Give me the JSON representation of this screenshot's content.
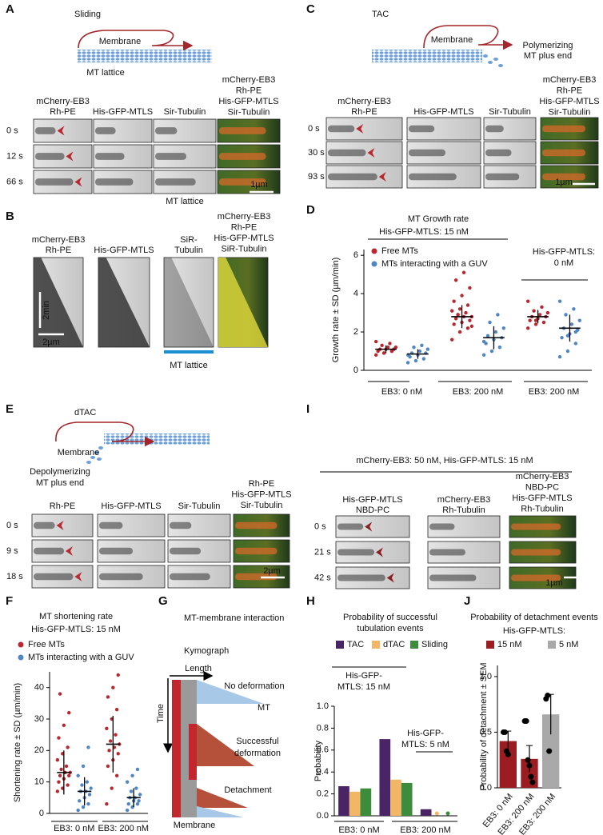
{
  "figure": {
    "A": {
      "letter": "A",
      "title": "Sliding",
      "membrane": "Membrane",
      "lattice": "MT lattice",
      "channels": [
        [
          "mCherry-EB3",
          "Rh-PE"
        ],
        [
          "His-GFP-MTLS"
        ],
        [
          "Sir-Tubulin"
        ]
      ],
      "merge": [
        "mCherry-EB3",
        "Rh-PE",
        "His-GFP-MTLS",
        "Sir-Tubulin"
      ],
      "times": [
        "0 s",
        "12 s",
        "66 s"
      ],
      "footer": "MT lattice",
      "scale": "1µm"
    },
    "B": {
      "letter": "B",
      "channels": [
        [
          "mCherry-EB3",
          "Rh-PE"
        ],
        [
          "His-GFP-MTLS"
        ],
        [
          "SiR-",
          "Tubulin"
        ]
      ],
      "merge": [
        "mCherry-EB3",
        "Rh-PE",
        "His-GFP-MTLS",
        "SiR-Tubulin"
      ],
      "time_scale": "2min",
      "length_scale": "2µm",
      "footer": "MT lattice"
    },
    "C": {
      "letter": "C",
      "title": "TAC",
      "membrane": "Membrane",
      "plus_end": [
        "Polymerizing",
        "MT plus end"
      ],
      "channels": [
        [
          "mCherry-EB3",
          "Rh-PE"
        ],
        [
          "His-GFP-MTLS"
        ],
        [
          "Sir-Tubulin"
        ]
      ],
      "merge": [
        "mCherry-EB3",
        "Rh-PE",
        "His-GFP-MTLS",
        "Sir-Tubulin"
      ],
      "times": [
        "0 s",
        "30 s",
        "93 s"
      ],
      "scale": "1µm"
    },
    "E": {
      "letter": "E",
      "title": "dTAC",
      "membrane": "Membrane",
      "plus_end": [
        "Depolymerizing",
        "MT plus end"
      ],
      "channels": [
        [
          "Rh-PE"
        ],
        [
          "His-GFP-MTLS"
        ],
        [
          "Sir-Tubulin"
        ]
      ],
      "merge": [
        "Rh-PE",
        "His-GFP-MTLS",
        "Sir-Tubulin"
      ],
      "times": [
        "0 s",
        "9 s",
        "18 s"
      ],
      "scale": "2µm"
    },
    "I": {
      "letter": "I",
      "condition": "mCherry-EB3: 50 nM, His-GFP-MTLS: 15 nM",
      "channels": [
        [
          "His-GFP-MTLS",
          "NBD-PC"
        ],
        [
          "mCherry-EB3",
          "Rh-Tubulin"
        ]
      ],
      "merge": [
        "mCherry-EB3",
        "NBD-PC",
        "His-GFP-MTLS",
        "Rh-Tubulin"
      ],
      "times": [
        "0 s",
        "21 s",
        "42 s"
      ],
      "scale": "1µm"
    },
    "G": {
      "letter": "G",
      "title": "MT-membrane interaction",
      "subtitle": "Kymograph",
      "x_label": "Length",
      "y_label": "Time",
      "cases": [
        [
          "No deformation"
        ],
        [
          "Successful",
          "deformation"
        ],
        [
          "Detachment"
        ]
      ],
      "mt": "MT",
      "membrane": "Membrane"
    }
  },
  "chart_data": [
    {
      "letter": "D",
      "type": "dot",
      "title": "MT Growth rate",
      "subtitle": "His-GFP-MTLS: 15 nM",
      "annotations": [
        [
          "His-GFP-MTLS:",
          "0 nM"
        ]
      ],
      "ylabel": "Growth rate ± SD (µm/min)",
      "categories": [
        "EB3: 0 nM",
        "EB3: 200 nM",
        "EB3: 200 nM"
      ],
      "ylim": [
        0,
        6.3
      ],
      "yticks": [
        0,
        2,
        4,
        6
      ],
      "series": [
        {
          "name": "Free MTs",
          "color": "#b8282e",
          "values": [
            1.1,
            2.8,
            2.8
          ],
          "sd": [
            0.2,
            0.6,
            0.35
          ],
          "points": [
            [
              0.8,
              0.9,
              1.0,
              1.0,
              1.1,
              1.1,
              1.1,
              1.2,
              1.2,
              1.3,
              1.4,
              1.5,
              0.9,
              1.0
            ],
            [
              1.6,
              2.0,
              2.2,
              2.4,
              2.5,
              2.6,
              2.7,
              2.8,
              2.8,
              2.9,
              3.0,
              3.1,
              3.2,
              3.4,
              3.6,
              3.9,
              4.3,
              4.7,
              5.1,
              2.3,
              2.9
            ],
            [
              2.2,
              2.4,
              2.5,
              2.6,
              2.7,
              2.8,
              2.8,
              2.9,
              3.0,
              3.1,
              3.3,
              3.6,
              2.6
            ]
          ]
        },
        {
          "name": "MTs interacting with a GUV",
          "color": "#4f86c6",
          "values": [
            0.85,
            1.7,
            2.2
          ],
          "sd": [
            0.25,
            0.6,
            0.7
          ],
          "points": [
            [
              0.4,
              0.5,
              0.6,
              0.7,
              0.8,
              0.9,
              0.9,
              1.0,
              1.1,
              1.2,
              1.3,
              0.8
            ],
            [
              0.8,
              1.0,
              1.2,
              1.4,
              1.6,
              1.7,
              1.8,
              2.0,
              2.2,
              2.5,
              2.9,
              1.5
            ],
            [
              0.7,
              1.0,
              1.4,
              1.7,
              1.9,
              2.1,
              2.2,
              2.4,
              2.6,
              2.9,
              3.2,
              3.6,
              1.8,
              2.0
            ]
          ]
        }
      ]
    },
    {
      "letter": "F",
      "type": "dot",
      "title": "MT shortening rate",
      "subtitle": "His-GFP-MTLS: 15 nM",
      "ylabel": "Shortening rate ± SD (µm/min)",
      "categories": [
        "EB3: 0 nM",
        "EB3: 200 nM"
      ],
      "ylim": [
        0,
        45
      ],
      "yticks": [
        0,
        10,
        20,
        30,
        40
      ],
      "series": [
        {
          "name": "Free MTs",
          "color": "#b8282e",
          "values": [
            13,
            22
          ],
          "sd": [
            7,
            9
          ],
          "points": [
            [
              7,
              8,
              9,
              10,
              11,
              12,
              12,
              13,
              13,
              14,
              15,
              17,
              19,
              21,
              24,
              28,
              32,
              38
            ],
            [
              3,
              8,
              12,
              15,
              17,
              19,
              20,
              21,
              22,
              23,
              25,
              27,
              30,
              33,
              37,
              40,
              44
            ]
          ]
        },
        {
          "name": "MTs interacting with a GUV",
          "color": "#4f86c6",
          "values": [
            7,
            5
          ],
          "sd": [
            4.5,
            3
          ],
          "points": [
            [
              1,
              2,
              3,
              4,
              5,
              6,
              7,
              7,
              8,
              9,
              10,
              12,
              15,
              21
            ],
            [
              1,
              2,
              3,
              3,
              4,
              4,
              5,
              5,
              6,
              7,
              8,
              10,
              12,
              14
            ]
          ]
        }
      ]
    },
    {
      "letter": "H",
      "type": "bar",
      "title": [
        "Probability of successful",
        "tubulation  events"
      ],
      "annotations": [
        [
          "His-GFP-",
          "MTLS: 15 nM"
        ],
        [
          "His-GFP-",
          "MTLS: 5 nM"
        ]
      ],
      "ylabel": "Probability",
      "categories": [
        "EB3: 0 nM",
        "EB3: 200 nM",
        null
      ],
      "ylim": [
        0,
        1
      ],
      "yticks": [
        {
          "value": 0,
          "label": "0.0"
        },
        0.2,
        0.4,
        0.6,
        0.8,
        {
          "value": 1,
          "label": "1.0"
        }
      ],
      "series": [
        {
          "name": "TAC",
          "color": "#4a2566",
          "values": [
            0.27,
            0.7,
            0.06
          ]
        },
        {
          "name": "dTAC",
          "color": "#f2b766",
          "values": [
            0.22,
            0.33,
            0
          ]
        },
        {
          "name": "Sliding",
          "color": "#3c8c3c",
          "values": [
            0.25,
            0.3,
            0
          ]
        }
      ]
    },
    {
      "letter": "J",
      "type": "bar",
      "title": "Probability of detachment events",
      "subtitle": "His-GFP-MTLS:",
      "ylabel": "Probability of detachment ± SEM",
      "categories": [
        "EB3: 0 nM",
        "EB3: 200 nM",
        "EB3: 200 nM"
      ],
      "ylim": [
        0,
        1.1
      ],
      "yticks": [
        {
          "value": 0,
          "label": "0.0"
        },
        0.5,
        {
          "value": 1,
          "label": "1.0"
        }
      ],
      "series": [
        {
          "name": "15 nM",
          "color": "#9c1d21",
          "values": [
            0.42,
            0.26,
            null
          ],
          "sem": [
            0.09,
            0.12,
            null
          ]
        },
        {
          "name": "5 nM",
          "color": "#a9a9a9",
          "values": [
            null,
            null,
            0.66
          ],
          "sem": [
            null,
            null,
            0.18
          ]
        }
      ],
      "points": [
        [
          0.5,
          0.5,
          0.33,
          0.3
        ],
        [
          0.6,
          0.6,
          0.25,
          0.2,
          0.1,
          0.05
        ],
        [
          0.8,
          0.83,
          0.33
        ]
      ]
    }
  ]
}
